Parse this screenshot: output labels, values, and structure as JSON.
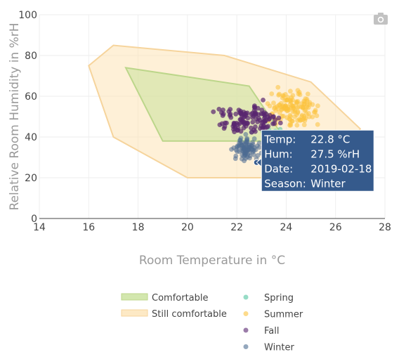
{
  "chart_data": {
    "type": "scatter",
    "xlabel": "Room Temperature in °C",
    "ylabel": "Relative Room Humidity in %rH",
    "xlim": [
      14,
      28
    ],
    "ylim": [
      0,
      100
    ],
    "x_ticks": [
      14,
      16,
      18,
      20,
      22,
      24,
      26,
      28
    ],
    "y_ticks": [
      0,
      20,
      40,
      60,
      80,
      100
    ],
    "grid": true,
    "legend_position": "bottom",
    "regions": [
      {
        "name": "Comfortable",
        "color": "#c8e19a",
        "polygon": [
          [
            17.5,
            74
          ],
          [
            22.5,
            65
          ],
          [
            24,
            38
          ],
          [
            19,
            38
          ]
        ]
      },
      {
        "name": "Still comfortable",
        "color": "#fde3b6",
        "polygon": [
          [
            16,
            75
          ],
          [
            17,
            85
          ],
          [
            21.5,
            80
          ],
          [
            25,
            67
          ],
          [
            27,
            44
          ],
          [
            26,
            25
          ],
          [
            24,
            20
          ],
          [
            20,
            20
          ],
          [
            17,
            40
          ]
        ]
      }
    ],
    "series": [
      {
        "name": "Spring",
        "color": "#52c5a0",
        "cluster": {
          "x": [
            22.8,
            24.4
          ],
          "y": [
            28,
            48
          ]
        }
      },
      {
        "name": "Summer",
        "color": "#fcc33e",
        "cluster": {
          "x": [
            22.8,
            25.8
          ],
          "y": [
            40,
            68
          ]
        }
      },
      {
        "name": "Fall",
        "color": "#58256f",
        "cluster": {
          "x": [
            20.8,
            24.7
          ],
          "y": [
            36,
            62
          ]
        }
      },
      {
        "name": "Winter",
        "color": "#4d6c91",
        "cluster": {
          "x": [
            21.6,
            23.2
          ],
          "y": [
            24,
            45
          ]
        }
      }
    ],
    "hover": {
      "rows": [
        {
          "label": "Temp:",
          "value": "22.8 °C"
        },
        {
          "label": "Hum:",
          "value": "27.5 %rH"
        },
        {
          "label": "Date:",
          "value": "2019-02-18"
        },
        {
          "label": "Season:",
          "value": "Winter"
        }
      ],
      "point": {
        "x": 22.8,
        "y": 27.5
      },
      "color": "#355a8c"
    }
  },
  "toolbar": {
    "camera_icon": "camera-icon"
  }
}
